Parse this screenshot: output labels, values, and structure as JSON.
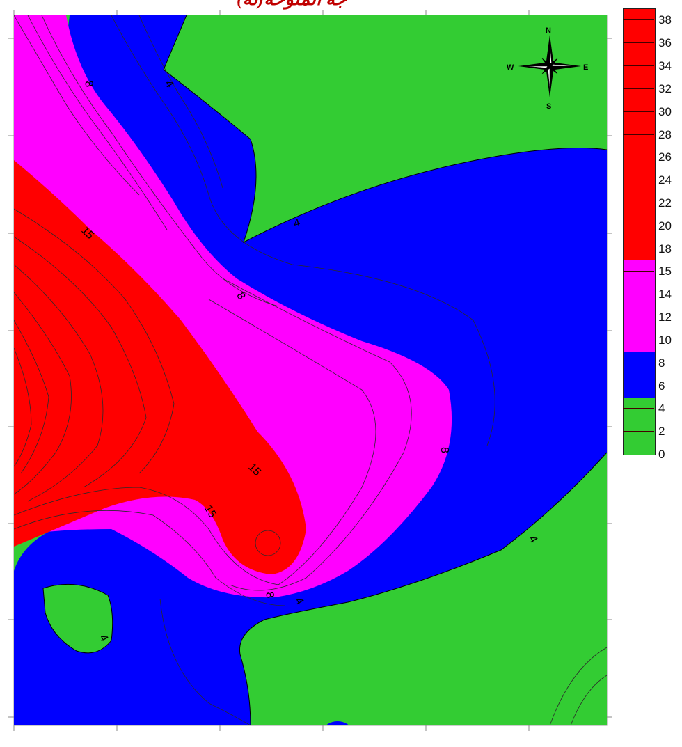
{
  "header": {
    "title": "(لة)جة الملوحة"
  },
  "colors": {
    "red": "#ff0000",
    "magenta": "#ff00ff",
    "blue": "#0000ff",
    "green": "#33cc33",
    "contour": "#2a2a2a"
  },
  "compass": {
    "north": "N",
    "south": "S",
    "east": "E",
    "west": "W"
  },
  "contour_labels": [
    {
      "id": "c-8-top",
      "text": "8"
    },
    {
      "id": "c-4-top",
      "text": "4"
    },
    {
      "id": "c-15-upper",
      "text": "15"
    },
    {
      "id": "c-4-mid",
      "text": "4"
    },
    {
      "id": "c-8-center",
      "text": "8"
    },
    {
      "id": "c-8-right",
      "text": "8"
    },
    {
      "id": "c-15-mid",
      "text": "15"
    },
    {
      "id": "c-15-low",
      "text": "15"
    },
    {
      "id": "c-4-right",
      "text": "4"
    },
    {
      "id": "c-8-bottom",
      "text": "8"
    },
    {
      "id": "c-4-bottom",
      "text": "4"
    },
    {
      "id": "c-4-left",
      "text": "4"
    }
  ],
  "legend": {
    "labels": [
      "38",
      "36",
      "34",
      "32",
      "30",
      "28",
      "26",
      "24",
      "22",
      "20",
      "18",
      "15",
      "14",
      "12",
      "10",
      "8",
      "6",
      "4",
      "2",
      "0"
    ],
    "classes": [
      {
        "from": 0,
        "to": 4,
        "color": "#33cc33"
      },
      {
        "from": 4,
        "to": 8,
        "color": "#0000ff"
      },
      {
        "from": 8,
        "to": 15,
        "color": "#ff00ff"
      },
      {
        "from": 15,
        "to": 40,
        "color": "#ff0000"
      }
    ]
  }
}
